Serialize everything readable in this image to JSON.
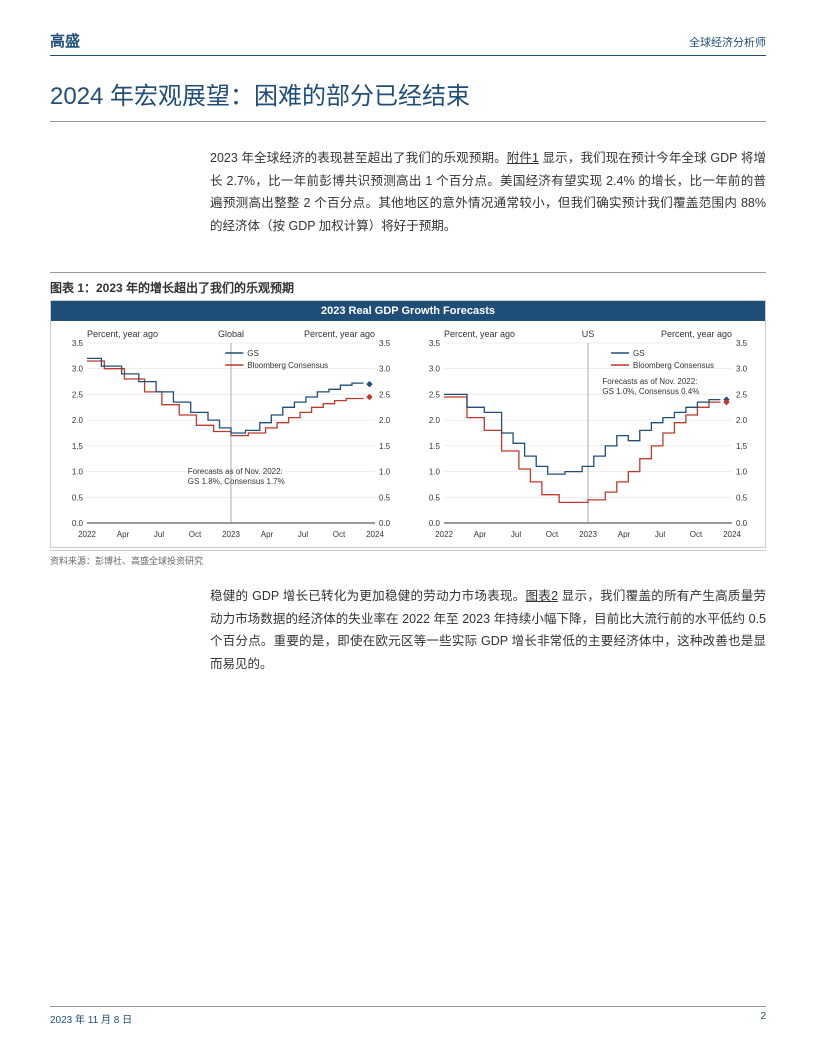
{
  "header": {
    "brand": "高盛",
    "right": "全球经济分析师"
  },
  "title": "2024 年宏观展望：困难的部分已经结束",
  "para1a": "2023 年全球经济的表现甚至超出了我们的乐观预期。",
  "para1link": "附件1",
  "para1b": " 显示，我们现在预计今年全球 GDP 将增长 2.7%，比一年前彭博共识预测高出 1 个百分点。美国经济有望实现 2.4% 的增长，比一年前的普遍预测高出整整 2 个百分点。其他地区的意外情况通常较小，但我们确实预计我们覆盖范围内 88% 的经济体（按 GDP 加权计算）将好于预期。",
  "exhibit": {
    "caption": "图表 1：2023 年的增长超出了我们的乐观预期",
    "banner": "2023 Real GDP Growth Forecasts",
    "source": "资料来源：彭博社、高盛全球投资研究",
    "axis_label": "Percent, year ago",
    "ylim": [
      0,
      3.5
    ],
    "ytick_step": 0.5,
    "xticks": [
      "2022",
      "Apr",
      "Jul",
      "Oct",
      "2023",
      "Apr",
      "Jul",
      "Oct",
      "2024"
    ],
    "legend": {
      "gs": "GS",
      "bc": "Bloomberg Consensus",
      "gs_color": "#1f4e79",
      "bc_color": "#c0392b"
    },
    "grid_color": "#dddddd",
    "axis_color": "#333333",
    "panels": [
      {
        "name": "Global",
        "note1": "Forecasts as of Nov. 2022:",
        "note2": "GS 1.8%, Consensus 1.7%",
        "marker_gs": 2.7,
        "marker_bc": 2.45,
        "gs": [
          [
            0,
            3.2
          ],
          [
            5,
            3.2
          ],
          [
            5,
            3.05
          ],
          [
            12,
            3.05
          ],
          [
            12,
            2.9
          ],
          [
            18,
            2.9
          ],
          [
            18,
            2.75
          ],
          [
            24,
            2.75
          ],
          [
            24,
            2.55
          ],
          [
            30,
            2.55
          ],
          [
            30,
            2.35
          ],
          [
            36,
            2.35
          ],
          [
            36,
            2.15
          ],
          [
            42,
            2.15
          ],
          [
            42,
            2.0
          ],
          [
            46,
            2.0
          ],
          [
            46,
            1.85
          ],
          [
            50,
            1.85
          ],
          [
            50,
            1.75
          ],
          [
            55,
            1.75
          ],
          [
            55,
            1.8
          ],
          [
            60,
            1.8
          ],
          [
            60,
            1.95
          ],
          [
            64,
            1.95
          ],
          [
            64,
            2.1
          ],
          [
            68,
            2.1
          ],
          [
            68,
            2.25
          ],
          [
            72,
            2.25
          ],
          [
            72,
            2.35
          ],
          [
            76,
            2.35
          ],
          [
            76,
            2.45
          ],
          [
            80,
            2.45
          ],
          [
            80,
            2.55
          ],
          [
            84,
            2.55
          ],
          [
            84,
            2.6
          ],
          [
            88,
            2.6
          ],
          [
            88,
            2.68
          ],
          [
            92,
            2.68
          ],
          [
            92,
            2.72
          ],
          [
            96,
            2.72
          ]
        ],
        "bc": [
          [
            0,
            3.15
          ],
          [
            6,
            3.15
          ],
          [
            6,
            3.0
          ],
          [
            13,
            3.0
          ],
          [
            13,
            2.8
          ],
          [
            20,
            2.8
          ],
          [
            20,
            2.55
          ],
          [
            26,
            2.55
          ],
          [
            26,
            2.3
          ],
          [
            32,
            2.3
          ],
          [
            32,
            2.1
          ],
          [
            38,
            2.1
          ],
          [
            38,
            1.9
          ],
          [
            44,
            1.9
          ],
          [
            44,
            1.78
          ],
          [
            50,
            1.78
          ],
          [
            50,
            1.7
          ],
          [
            56,
            1.7
          ],
          [
            56,
            1.75
          ],
          [
            62,
            1.75
          ],
          [
            62,
            1.85
          ],
          [
            66,
            1.85
          ],
          [
            66,
            1.95
          ],
          [
            70,
            1.95
          ],
          [
            70,
            2.05
          ],
          [
            74,
            2.05
          ],
          [
            74,
            2.15
          ],
          [
            78,
            2.15
          ],
          [
            78,
            2.25
          ],
          [
            82,
            2.25
          ],
          [
            82,
            2.32
          ],
          [
            86,
            2.32
          ],
          [
            86,
            2.38
          ],
          [
            90,
            2.38
          ],
          [
            90,
            2.42
          ],
          [
            96,
            2.42
          ]
        ]
      },
      {
        "name": "US",
        "note1": "Forecasts as of Nov. 2022:",
        "note2": "GS 1.0%, Consensus 0.4%",
        "marker_gs": 2.4,
        "marker_bc": 2.35,
        "gs": [
          [
            0,
            2.5
          ],
          [
            8,
            2.5
          ],
          [
            8,
            2.25
          ],
          [
            14,
            2.25
          ],
          [
            14,
            2.15
          ],
          [
            20,
            2.15
          ],
          [
            20,
            1.75
          ],
          [
            24,
            1.75
          ],
          [
            24,
            1.55
          ],
          [
            28,
            1.55
          ],
          [
            28,
            1.3
          ],
          [
            32,
            1.3
          ],
          [
            32,
            1.1
          ],
          [
            36,
            1.1
          ],
          [
            36,
            0.95
          ],
          [
            42,
            0.95
          ],
          [
            42,
            1.0
          ],
          [
            48,
            1.0
          ],
          [
            48,
            1.1
          ],
          [
            52,
            1.1
          ],
          [
            52,
            1.3
          ],
          [
            56,
            1.3
          ],
          [
            56,
            1.5
          ],
          [
            60,
            1.5
          ],
          [
            60,
            1.7
          ],
          [
            64,
            1.7
          ],
          [
            64,
            1.6
          ],
          [
            68,
            1.6
          ],
          [
            68,
            1.8
          ],
          [
            72,
            1.8
          ],
          [
            72,
            1.95
          ],
          [
            76,
            1.95
          ],
          [
            76,
            2.05
          ],
          [
            80,
            2.05
          ],
          [
            80,
            2.15
          ],
          [
            84,
            2.15
          ],
          [
            84,
            2.25
          ],
          [
            88,
            2.25
          ],
          [
            88,
            2.35
          ],
          [
            92,
            2.35
          ],
          [
            92,
            2.4
          ],
          [
            96,
            2.4
          ]
        ],
        "bc": [
          [
            0,
            2.45
          ],
          [
            8,
            2.45
          ],
          [
            8,
            2.05
          ],
          [
            14,
            2.05
          ],
          [
            14,
            1.8
          ],
          [
            20,
            1.8
          ],
          [
            20,
            1.4
          ],
          [
            26,
            1.4
          ],
          [
            26,
            1.05
          ],
          [
            30,
            1.05
          ],
          [
            30,
            0.8
          ],
          [
            34,
            0.8
          ],
          [
            34,
            0.55
          ],
          [
            40,
            0.55
          ],
          [
            40,
            0.4
          ],
          [
            50,
            0.4
          ],
          [
            50,
            0.45
          ],
          [
            56,
            0.45
          ],
          [
            56,
            0.6
          ],
          [
            60,
            0.6
          ],
          [
            60,
            0.8
          ],
          [
            64,
            0.8
          ],
          [
            64,
            1.0
          ],
          [
            68,
            1.0
          ],
          [
            68,
            1.25
          ],
          [
            72,
            1.25
          ],
          [
            72,
            1.5
          ],
          [
            76,
            1.5
          ],
          [
            76,
            1.75
          ],
          [
            80,
            1.75
          ],
          [
            80,
            1.95
          ],
          [
            84,
            1.95
          ],
          [
            84,
            2.1
          ],
          [
            88,
            2.1
          ],
          [
            88,
            2.25
          ],
          [
            92,
            2.25
          ],
          [
            92,
            2.35
          ],
          [
            96,
            2.35
          ]
        ]
      }
    ]
  },
  "para2a": "稳健的 GDP 增长已转化为更加稳健的劳动力市场表现。",
  "para2link": "图表2",
  "para2b": " 显示，我们覆盖的所有产生高质量劳动力市场数据的经济体的失业率在 2022 年至 2023 年持续小幅下降，目前比大流行前的水平低约 0.5 个百分点。重要的是，即使在欧元区等一些实际 GDP 增长非常低的主要经济体中，这种改善也是显而易见的。",
  "footer": {
    "date": "2023 年 11 月 8 日",
    "page": "2"
  }
}
